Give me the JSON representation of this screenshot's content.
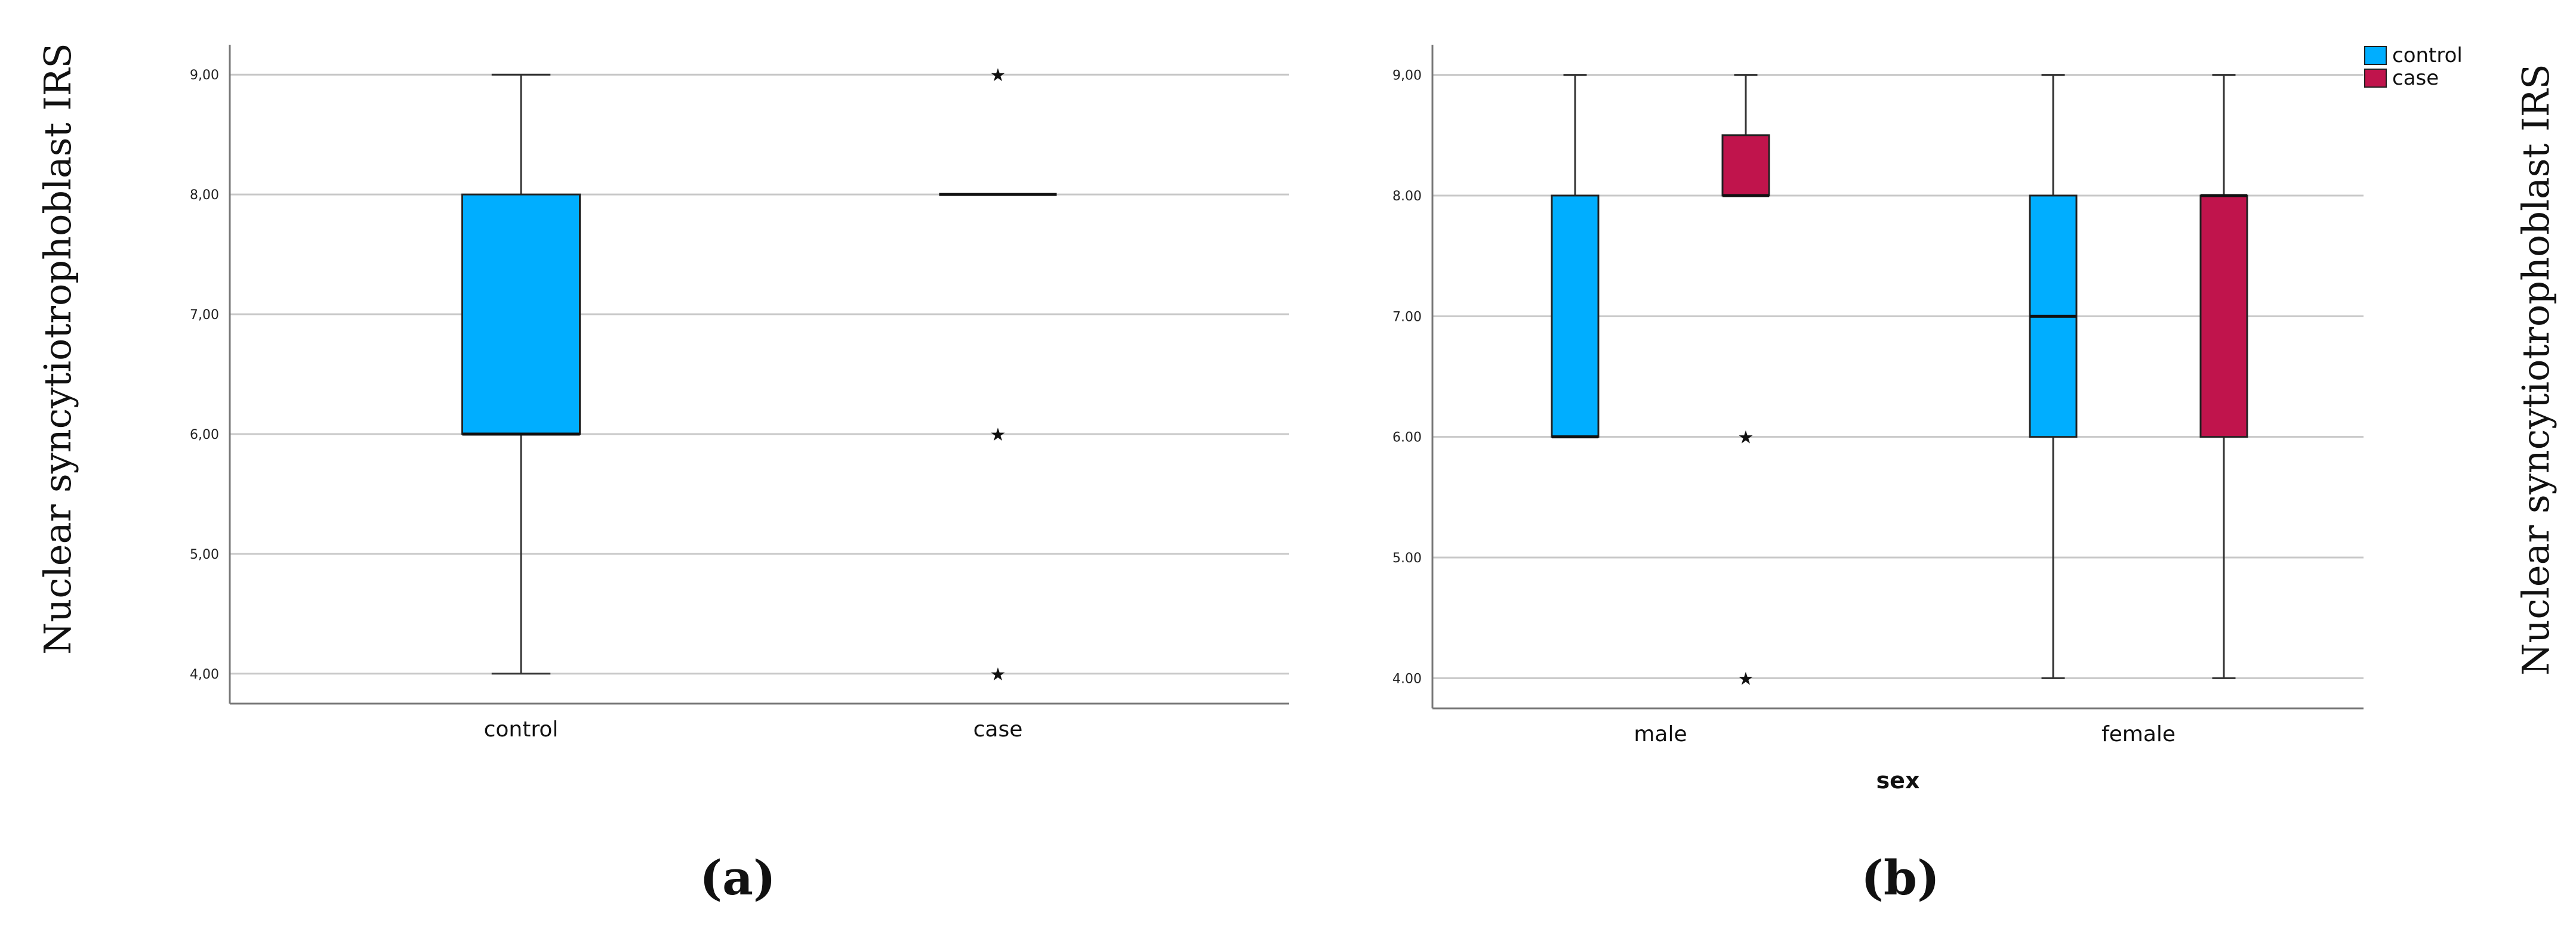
{
  "colors": {
    "control": "#00AEFF",
    "case": "#C0144C",
    "grid": "#c8c8c8",
    "axis": "#777777"
  },
  "chart_data": [
    {
      "type": "boxplot",
      "panel_label": "(a)",
      "ylabel": "Nuclear syncytiotrophoblast IRS",
      "xlabel": "",
      "ylim": [
        3.75,
        9.25
      ],
      "yticks": [
        "4,00",
        "5,00",
        "6,00",
        "7,00",
        "8,00",
        "9,00"
      ],
      "ytick_values": [
        4,
        5,
        6,
        7,
        8,
        9
      ],
      "grid": true,
      "categories": [
        "control",
        "case"
      ],
      "boxes": [
        {
          "category": "control",
          "group": "control",
          "min": 4,
          "q1": 6,
          "median": 6,
          "q3": 8,
          "max": 9,
          "outliers": []
        },
        {
          "category": "case",
          "group": "case",
          "min": 8,
          "q1": 8,
          "median": 8,
          "q3": 8,
          "max": 8,
          "outliers": [
            9,
            6,
            4
          ]
        }
      ]
    },
    {
      "type": "boxplot",
      "panel_label": "(b)",
      "ylabel": "Nuclear syncytiotrophoblast IRS",
      "xlabel": "sex",
      "ylim": [
        3.75,
        9.25
      ],
      "yticks": [
        "4.00",
        "5.00",
        "6.00",
        "7.00",
        "8.00",
        "9,00"
      ],
      "ytick_values": [
        4,
        5,
        6,
        7,
        8,
        9
      ],
      "grid": true,
      "categories": [
        "male",
        "female"
      ],
      "legend": {
        "position": "top-right",
        "entries": [
          "control",
          "case"
        ]
      },
      "boxes": [
        {
          "category": "male",
          "group": "control",
          "min": 6,
          "q1": 6,
          "median": 6,
          "q3": 8,
          "max": 9,
          "outliers": []
        },
        {
          "category": "male",
          "group": "case",
          "min": 8,
          "q1": 8,
          "median": 8,
          "q3": 8.5,
          "max": 9,
          "outliers": [
            6,
            4
          ]
        },
        {
          "category": "female",
          "group": "control",
          "min": 4,
          "q1": 6,
          "median": 7,
          "q3": 8,
          "max": 9,
          "outliers": []
        },
        {
          "category": "female",
          "group": "case",
          "min": 4,
          "q1": 6,
          "median": 8,
          "q3": 8,
          "max": 9,
          "outliers": []
        }
      ]
    }
  ]
}
